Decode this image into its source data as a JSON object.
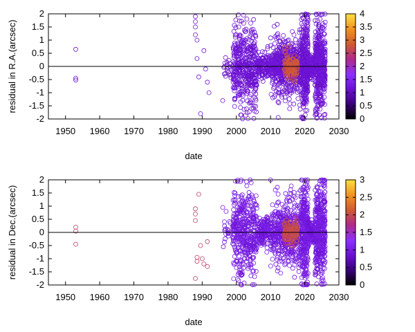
{
  "chart_data": [
    {
      "type": "scatter",
      "title": "",
      "xlabel": "date",
      "ylabel": "residual in R.A.(arcsec)",
      "xlim": [
        1945,
        2030
      ],
      "ylim": [
        -2,
        2
      ],
      "xticks": [
        "1950",
        "1960",
        "1970",
        "1980",
        "1990",
        "2000",
        "2010",
        "2020",
        "2030"
      ],
      "yticks": [
        "2",
        "1.5",
        "1",
        "0.5",
        "0",
        "-0.5",
        "-1",
        "-1.5",
        "-2"
      ],
      "colorbar": {
        "range": [
          0,
          4
        ],
        "ticks": [
          "4",
          "3.5",
          "3",
          "2.5",
          "2",
          "1.5",
          "1",
          "0.5",
          "0"
        ],
        "palette": [
          "#000000",
          "#3a007a",
          "#6a10d0",
          "#8c30ff",
          "#b02a8a",
          "#d05a30",
          "#f09020",
          "#ffe040"
        ]
      },
      "grid": false,
      "zero_line": true,
      "points": [
        {
          "x": 1953.0,
          "y": 0.65,
          "c": 1.2
        },
        {
          "x": 1953.0,
          "y": -0.45,
          "c": 1.2
        },
        {
          "x": 1953.0,
          "y": -0.52,
          "c": 1.2
        },
        {
          "x": 1988.0,
          "y": 1.9,
          "c": 1.2
        },
        {
          "x": 1988.0,
          "y": 1.7,
          "c": 1.2
        },
        {
          "x": 1988.0,
          "y": 1.5,
          "c": 1.2
        },
        {
          "x": 1988.0,
          "y": 1.2,
          "c": 1.2
        },
        {
          "x": 1988.5,
          "y": 1.0,
          "c": 1.2
        },
        {
          "x": 1988.5,
          "y": 0.3,
          "c": 1.2
        },
        {
          "x": 1989.0,
          "y": -0.4,
          "c": 1.2
        },
        {
          "x": 1989.5,
          "y": -1.8,
          "c": 1.2
        },
        {
          "x": 1990.5,
          "y": 0.6,
          "c": 1.2
        },
        {
          "x": 1991.0,
          "y": -0.1,
          "c": 1.2
        },
        {
          "x": 1991.5,
          "y": -0.6,
          "c": 1.2
        },
        {
          "x": 1992.0,
          "y": -1.0,
          "c": 1.2
        },
        {
          "x": 1996.0,
          "y": -1.3,
          "c": 1.2
        },
        {
          "x": 1996.5,
          "y": 0.0,
          "c": 1.2
        }
      ],
      "clusters": [
        {
          "x_from": 1996,
          "x_to": 1999,
          "y_spread": 0.6,
          "count": 20,
          "c": 1.2
        },
        {
          "x_from": 1999,
          "x_to": 2006,
          "y_spread": 1.7,
          "count": 420,
          "c": 1.2
        },
        {
          "x_from": 2006,
          "x_to": 2012,
          "y_spread": 0.6,
          "count": 220,
          "c": 1.2
        },
        {
          "x_from": 2010,
          "x_to": 2012,
          "y_spread": 1.9,
          "count": 40,
          "c": 1.2
        },
        {
          "x_from": 2012,
          "x_to": 2019,
          "y_spread": 1.3,
          "count": 420,
          "c": 1.2
        },
        {
          "x_from": 2014,
          "x_to": 2018,
          "y_spread": 0.5,
          "count": 120,
          "c": 2.8
        },
        {
          "x_from": 2019,
          "x_to": 2021,
          "y_spread": 2.0,
          "count": 320,
          "c": 1.2
        },
        {
          "x_from": 2020,
          "x_to": 2023,
          "y_spread": 0.45,
          "count": 220,
          "c": 1.2
        },
        {
          "x_from": 2023,
          "x_to": 2026,
          "y_spread": 1.9,
          "count": 420,
          "c": 1.2
        }
      ]
    },
    {
      "type": "scatter",
      "title": "",
      "xlabel": "date",
      "ylabel": "residual in Dec.(arcsec)",
      "xlim": [
        1945,
        2030
      ],
      "ylim": [
        -2,
        2
      ],
      "xticks": [
        "1950",
        "1960",
        "1970",
        "1980",
        "1990",
        "2000",
        "2010",
        "2020",
        "2030"
      ],
      "yticks": [
        "2",
        "1.5",
        "1",
        "0.5",
        "0",
        "-0.5",
        "-1",
        "-1.5",
        "-2"
      ],
      "colorbar": {
        "range": [
          0,
          3
        ],
        "ticks": [
          "3",
          "2.5",
          "2",
          "1.5",
          "1",
          "0.5",
          "0"
        ],
        "palette": [
          "#000000",
          "#3a007a",
          "#6a10d0",
          "#8c30ff",
          "#b02a8a",
          "#d05a30",
          "#f09020",
          "#ffe040"
        ]
      },
      "grid": false,
      "zero_line": true,
      "points": [
        {
          "x": 1953.0,
          "y": 0.2,
          "c": 1.9
        },
        {
          "x": 1953.0,
          "y": 0.05,
          "c": 1.9
        },
        {
          "x": 1953.0,
          "y": -0.45,
          "c": 1.9
        },
        {
          "x": 1988.0,
          "y": 0.9,
          "c": 1.9
        },
        {
          "x": 1988.0,
          "y": 0.7,
          "c": 1.9
        },
        {
          "x": 1988.0,
          "y": 0.45,
          "c": 1.9
        },
        {
          "x": 1988.5,
          "y": -0.95,
          "c": 1.9
        },
        {
          "x": 1988.5,
          "y": -1.1,
          "c": 1.9
        },
        {
          "x": 1988.0,
          "y": -1.75,
          "c": 1.9
        },
        {
          "x": 1989.0,
          "y": 1.45,
          "c": 1.9
        },
        {
          "x": 1989.5,
          "y": -0.5,
          "c": 1.9
        },
        {
          "x": 1990.0,
          "y": -1.0,
          "c": 1.9
        },
        {
          "x": 1990.5,
          "y": -1.2,
          "c": 1.9
        },
        {
          "x": 1991.5,
          "y": -0.35,
          "c": 1.9
        },
        {
          "x": 1991.5,
          "y": -1.3,
          "c": 1.9
        },
        {
          "x": 1996.0,
          "y": 0.95,
          "c": 1.0
        },
        {
          "x": 1997.0,
          "y": 0.8,
          "c": 1.0
        },
        {
          "x": 2000.5,
          "y": -1.6,
          "c": 1.0
        },
        {
          "x": 2001.5,
          "y": -2.0,
          "c": 1.0
        },
        {
          "x": 2004.0,
          "y": 2.0,
          "c": 1.0
        },
        {
          "x": 2010.0,
          "y": 2.0,
          "c": 1.0
        }
      ],
      "clusters": [
        {
          "x_from": 1996,
          "x_to": 1999,
          "y_spread": 0.7,
          "count": 20,
          "c": 1.0
        },
        {
          "x_from": 1999,
          "x_to": 2006,
          "y_spread": 1.8,
          "count": 420,
          "c": 1.0
        },
        {
          "x_from": 2006,
          "x_to": 2012,
          "y_spread": 0.6,
          "count": 220,
          "c": 1.0
        },
        {
          "x_from": 2010,
          "x_to": 2012,
          "y_spread": 1.9,
          "count": 40,
          "c": 1.0
        },
        {
          "x_from": 2012,
          "x_to": 2019,
          "y_spread": 1.3,
          "count": 420,
          "c": 1.0
        },
        {
          "x_from": 2014,
          "x_to": 2018,
          "y_spread": 0.45,
          "count": 120,
          "c": 2.0
        },
        {
          "x_from": 2019,
          "x_to": 2021,
          "y_spread": 2.0,
          "count": 320,
          "c": 1.0
        },
        {
          "x_from": 2020,
          "x_to": 2023,
          "y_spread": 0.45,
          "count": 220,
          "c": 1.0
        },
        {
          "x_from": 2023,
          "x_to": 2026,
          "y_spread": 1.9,
          "count": 420,
          "c": 1.0
        }
      ]
    }
  ]
}
